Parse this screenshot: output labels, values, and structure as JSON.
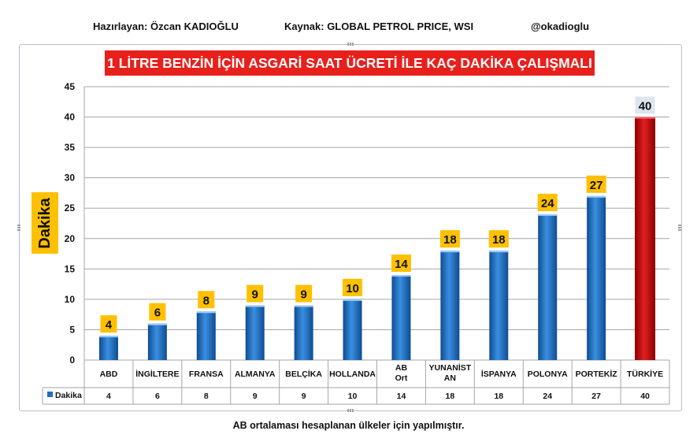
{
  "header": {
    "author": "Hazırlayan: Özcan KADIOĞLU",
    "source": "Kaynak: GLOBAL PETROL PRICE, WSI",
    "handle": "@okadioglu"
  },
  "footnote": "AB ortalaması hesaplanan ülkeler için yapılmıştır.",
  "colors": {
    "bar": "#1f6fc5",
    "highlight_bar": "#c00000",
    "title_bg": "#e8201c",
    "label_bg": "#ffc000",
    "highlight_label_bg": "#dce6f0"
  },
  "chart_data": {
    "type": "bar",
    "title": "1 LİTRE BENZİN İÇİN ASGARİ SAAT ÜCRETİ İLE KAÇ DAKİKA ÇALIŞMALI",
    "ylabel": "Dakika",
    "xlabel": "",
    "ylim": [
      0,
      45
    ],
    "yticks": [
      "0",
      "5",
      "10",
      "15",
      "20",
      "25",
      "30",
      "35",
      "40",
      "45"
    ],
    "grid": true,
    "categories": [
      "ABD",
      "İNGİLTERE",
      "FRANSA",
      "ALMANYA",
      "BELÇİKA",
      "HOLLANDA",
      "AB Ort",
      "YUNANİST AN",
      "İSPANYA",
      "POLONYA",
      "PORTEKİZ",
      "TÜRKİYE"
    ],
    "series": [
      {
        "name": "Dakika",
        "values": [
          4,
          6,
          8,
          9,
          9,
          10,
          14,
          18,
          18,
          24,
          27,
          40
        ]
      }
    ],
    "highlight_category": "TÜRKİYE",
    "data_table": true
  }
}
